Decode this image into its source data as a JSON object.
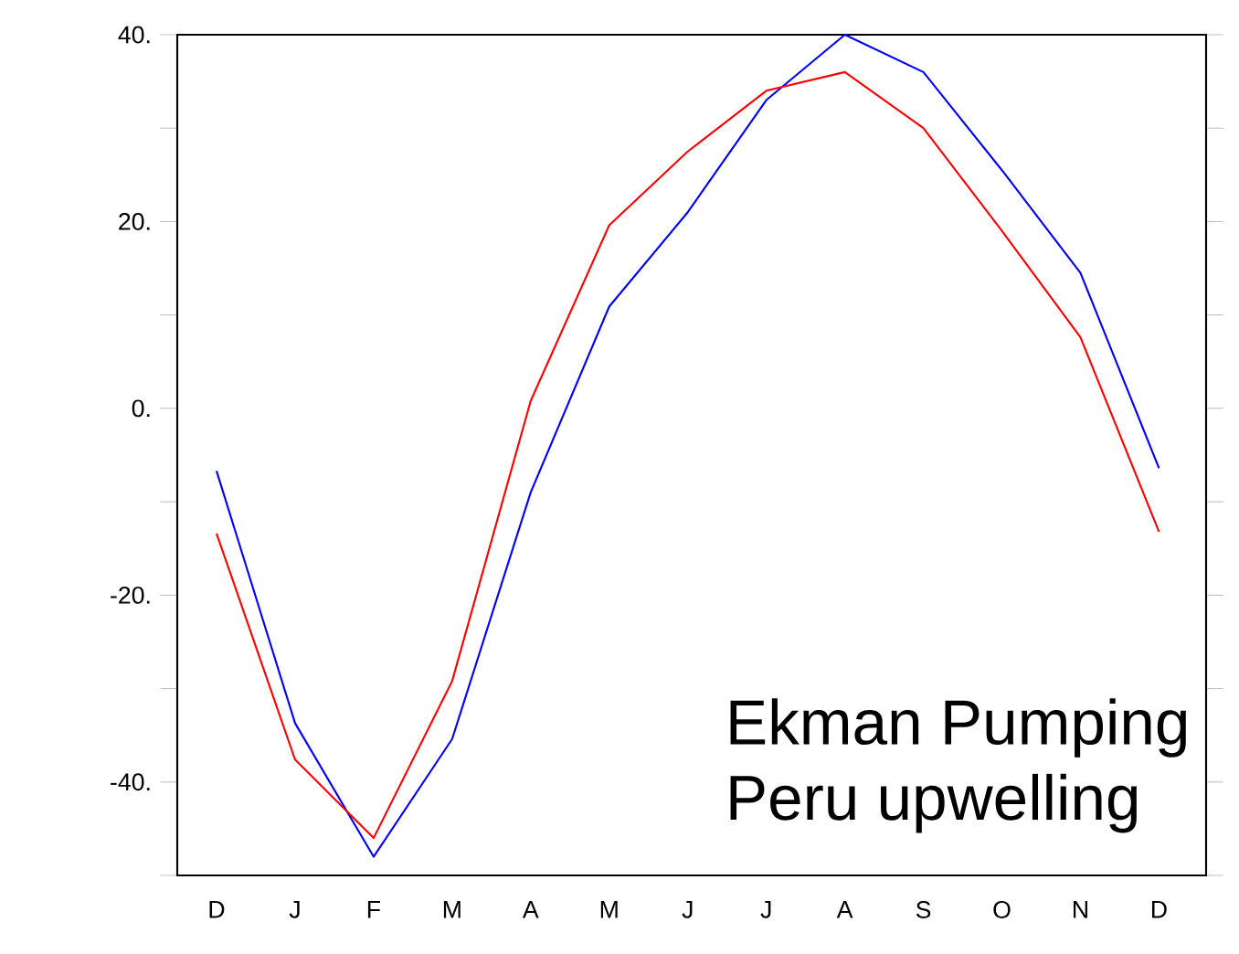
{
  "chart_data": {
    "type": "line",
    "categories": [
      "D",
      "J",
      "F",
      "M",
      "A",
      "M",
      "J",
      "J",
      "A",
      "S",
      "O",
      "N",
      "D"
    ],
    "series": [
      {
        "color": "#0000ff",
        "values": [
          -6.7,
          -33.7,
          -48,
          -35.4,
          -9,
          10.9,
          21,
          33,
          40,
          36,
          25.5,
          14.5,
          -6.4
        ]
      },
      {
        "color": "#ff0000",
        "values": [
          -13.4,
          -37.6,
          -46,
          -29.2,
          0.8,
          19.6,
          27.5,
          34,
          36,
          30,
          19,
          7.6,
          -13.2
        ]
      }
    ],
    "ylim": [
      -50,
      40
    ],
    "yticks": [
      {
        "value": -50,
        "label": null
      },
      {
        "value": -40,
        "label": "-40."
      },
      {
        "value": -30,
        "label": null
      },
      {
        "value": -20,
        "label": "-20."
      },
      {
        "value": -10,
        "label": null
      },
      {
        "value": 0,
        "label": "0."
      },
      {
        "value": 10,
        "label": null
      },
      {
        "value": 20,
        "label": "20."
      },
      {
        "value": 30,
        "label": null
      },
      {
        "value": 40,
        "label": "40."
      }
    ],
    "annotations": [
      "Ekman Pumping",
      "Peru upwelling"
    ]
  }
}
